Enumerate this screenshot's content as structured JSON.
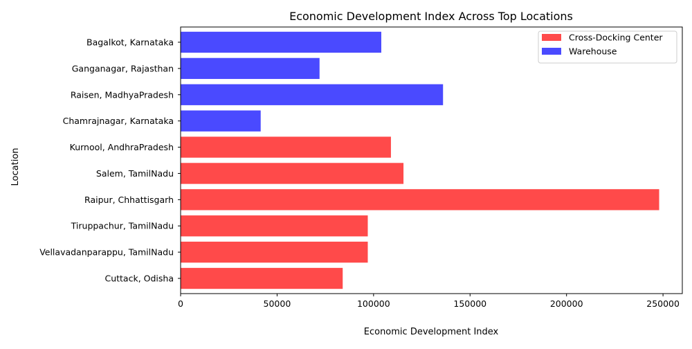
{
  "chart_data": {
    "type": "bar",
    "orientation": "horizontal",
    "title": "Economic Development Index Across Top Locations",
    "xlabel": "Economic Development Index",
    "ylabel": "Location",
    "xlim": [
      0,
      260000
    ],
    "xticks": [
      0,
      50000,
      100000,
      150000,
      200000,
      250000
    ],
    "xtick_labels": [
      "0",
      "50000",
      "100000",
      "150000",
      "200000",
      "250000"
    ],
    "grid": false,
    "legend_position": "top-right",
    "legend": [
      {
        "label": "Cross-Docking Center",
        "color": "#ff4a4a"
      },
      {
        "label": "Warehouse",
        "color": "#4a4aff"
      }
    ],
    "bars": [
      {
        "category": "Cuttack, Odisha",
        "value": 84000,
        "group": "Cross-Docking Center"
      },
      {
        "category": "Vellavadanparappu, TamilNadu",
        "value": 97000,
        "group": "Cross-Docking Center"
      },
      {
        "category": "Tiruppachur, TamilNadu",
        "value": 97000,
        "group": "Cross-Docking Center"
      },
      {
        "category": "Raipur, Chhattisgarh",
        "value": 248000,
        "group": "Cross-Docking Center"
      },
      {
        "category": "Salem, TamilNadu",
        "value": 115500,
        "group": "Cross-Docking Center"
      },
      {
        "category": "Kurnool, AndhraPradesh",
        "value": 109000,
        "group": "Cross-Docking Center"
      },
      {
        "category": "Chamrajnagar, Karnataka",
        "value": 41500,
        "group": "Warehouse"
      },
      {
        "category": "Raisen, MadhyaPradesh",
        "value": 136000,
        "group": "Warehouse"
      },
      {
        "category": "Ganganagar, Rajasthan",
        "value": 72000,
        "group": "Warehouse"
      },
      {
        "category": "Bagalkot, Karnataka",
        "value": 104000,
        "group": "Warehouse"
      }
    ]
  }
}
